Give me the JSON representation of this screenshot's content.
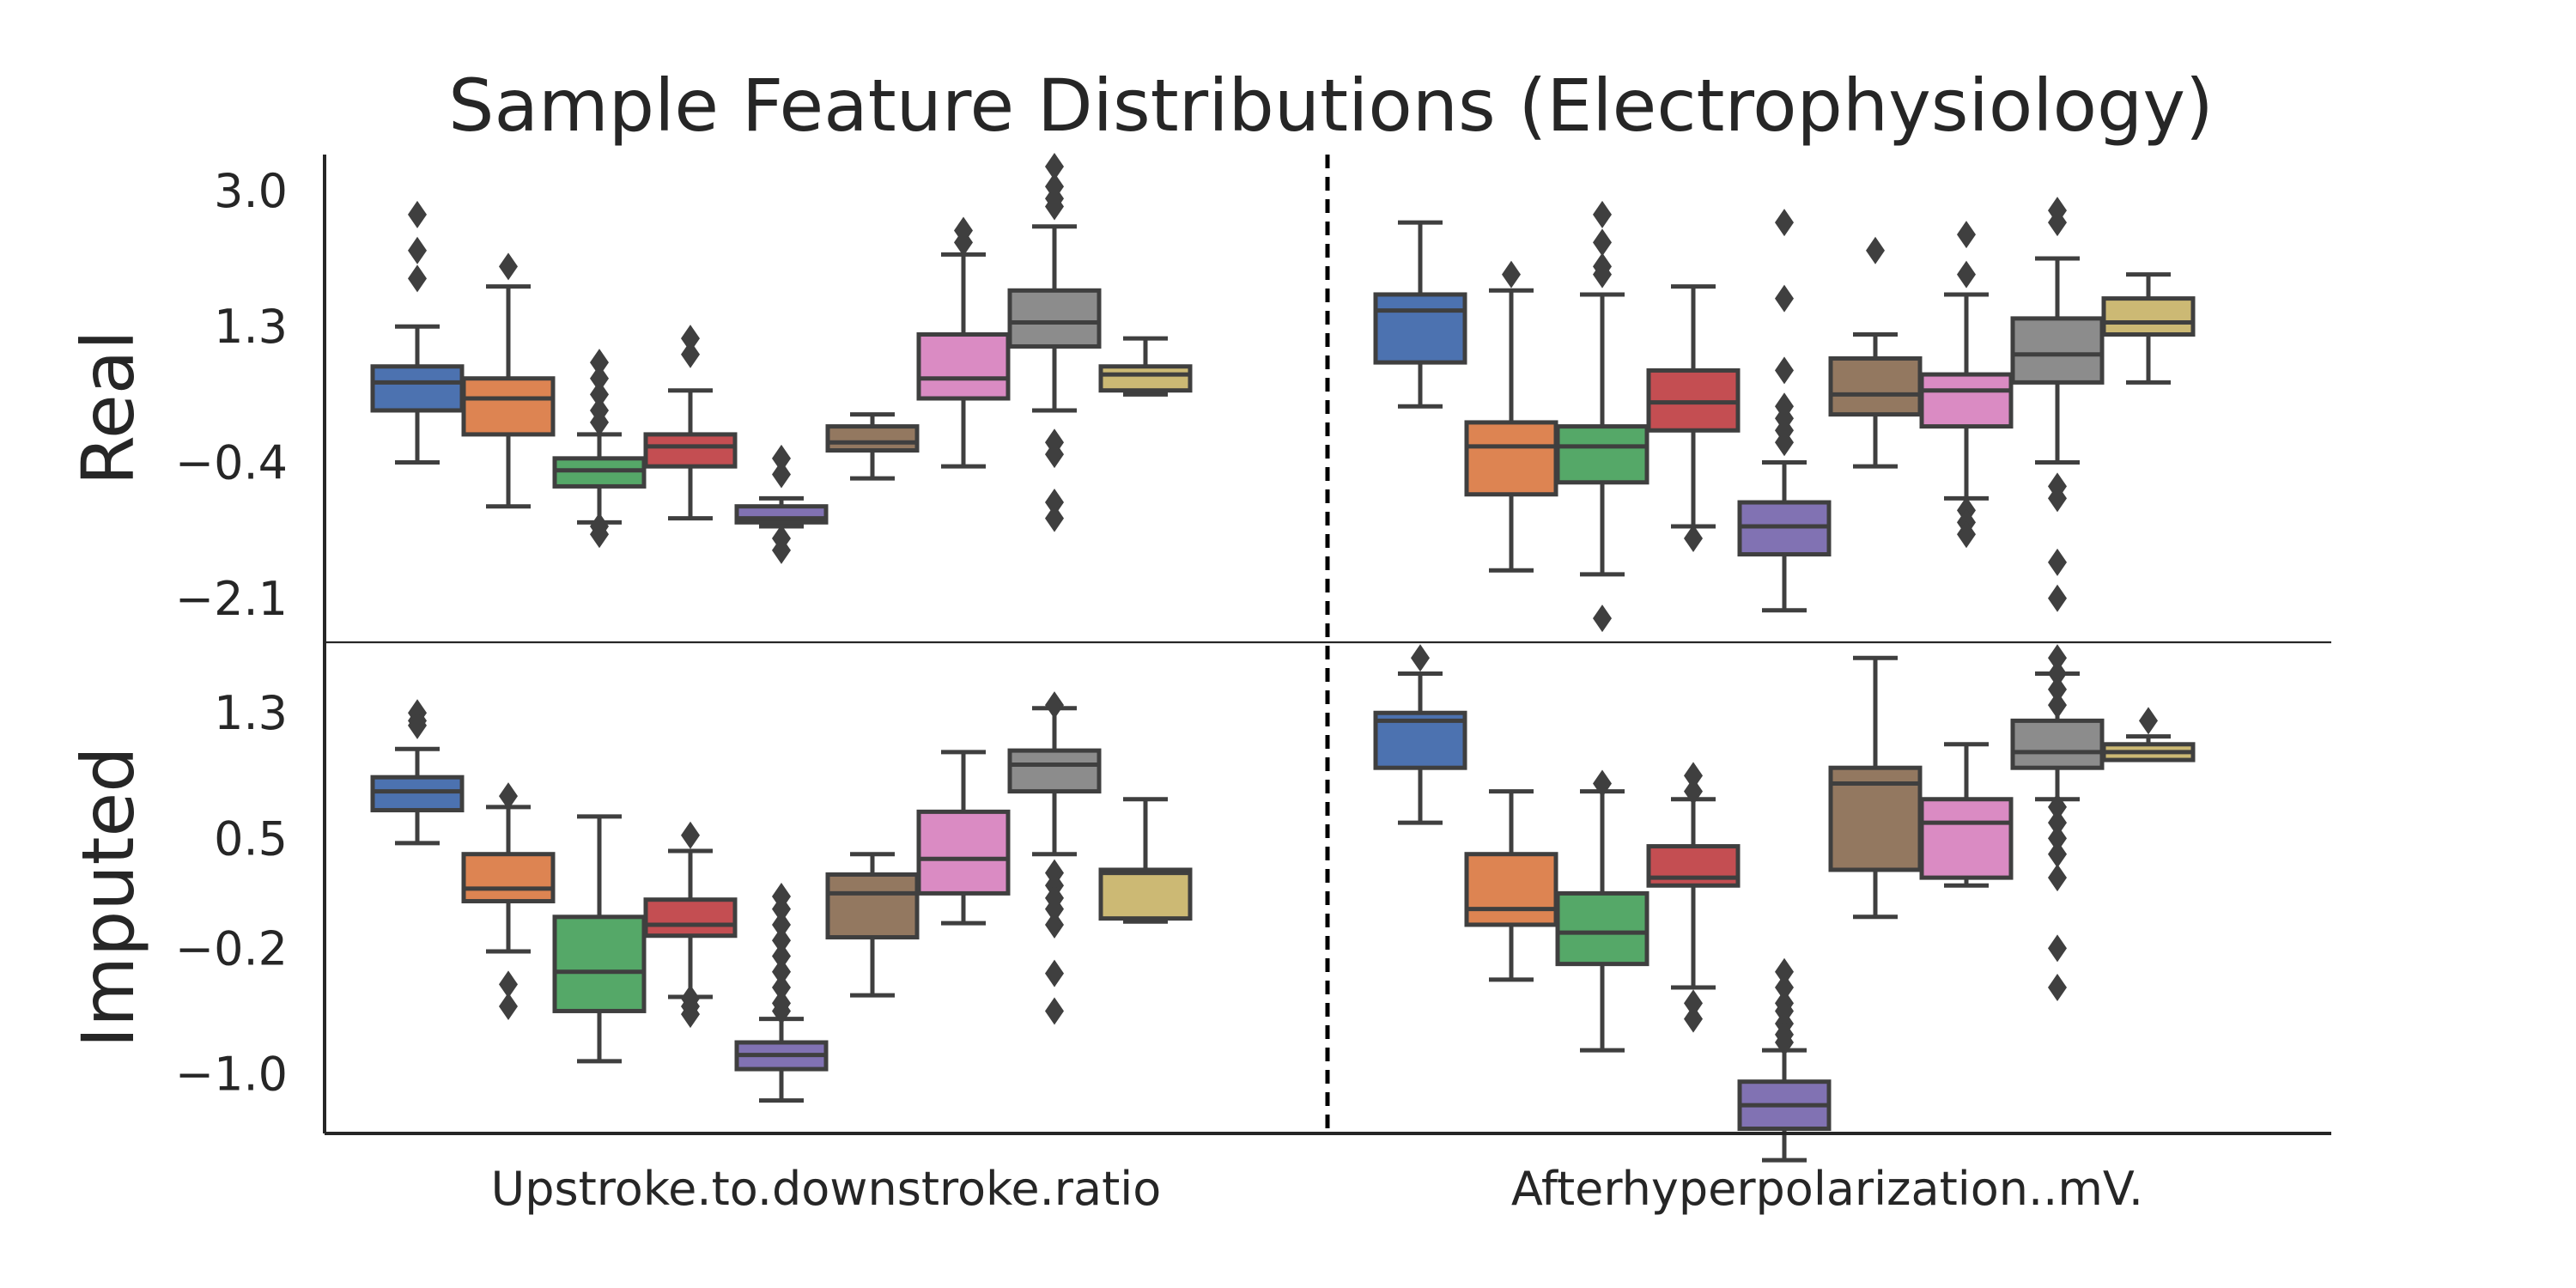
{
  "chart_data": {
    "type": "box",
    "title": "Sample Feature Distributions (Electrophysiology)",
    "row_labels": [
      "Real",
      "Imputed"
    ],
    "x_groups": [
      "Upstroke.to.downstroke.ratio",
      "Afterhyperpolarization..mV."
    ],
    "colors": [
      "#4c72b0",
      "#dd8452",
      "#55a868",
      "#c44e52",
      "#8172b3",
      "#937860",
      "#da8bc3",
      "#8c8c8c",
      "#ccb974"
    ],
    "rows": [
      {
        "name": "Real",
        "ylim": [
          -2.65,
          3.45
        ],
        "yticks": [
          3.0,
          1.3,
          -0.4,
          -2.1
        ],
        "ytick_labels": [
          "3.0",
          "1.3",
          "−0.4",
          "−2.1"
        ],
        "groups": [
          {
            "name": "Upstroke.to.downstroke.ratio",
            "boxes": [
              {
                "whislo": -0.4,
                "q1": 0.25,
                "med": 0.6,
                "q3": 0.8,
                "whishi": 1.3,
                "fliers": [
                  2.7,
                  2.25,
                  1.9
                ]
              },
              {
                "whislo": -0.95,
                "q1": -0.05,
                "med": 0.4,
                "q3": 0.65,
                "whishi": 1.8,
                "fliers": [
                  2.05
                ]
              },
              {
                "whislo": -1.15,
                "q1": -0.7,
                "med": -0.5,
                "q3": -0.35,
                "whishi": -0.05,
                "fliers": [
                  0.85,
                  0.65,
                  0.45,
                  0.25,
                  0.1,
                  -1.2,
                  -1.3
                ]
              },
              {
                "whislo": -1.1,
                "q1": -0.45,
                "med": -0.2,
                "q3": -0.05,
                "whishi": 0.5,
                "fliers": [
                  1.15,
                  0.95
                ]
              },
              {
                "whislo": -1.2,
                "q1": -1.15,
                "med": -1.1,
                "q3": -0.95,
                "whishi": -0.85,
                "fliers": [
                  -0.35,
                  -0.55,
                  -1.35,
                  -1.5
                ]
              },
              {
                "whislo": -0.6,
                "q1": -0.25,
                "med": -0.15,
                "q3": 0.05,
                "whishi": 0.2,
                "fliers": []
              },
              {
                "whislo": -0.45,
                "q1": 0.4,
                "med": 0.65,
                "q3": 1.2,
                "whishi": 2.2,
                "fliers": [
                  2.5,
                  2.35
                ]
              },
              {
                "whislo": 0.25,
                "q1": 1.05,
                "med": 1.35,
                "q3": 1.75,
                "whishi": 2.55,
                "fliers": [
                  3.3,
                  3.05,
                  2.9,
                  2.8,
                  -0.15,
                  -0.3,
                  -0.9,
                  -1.1
                ]
              },
              {
                "whislo": 0.45,
                "q1": 0.5,
                "med": 0.7,
                "q3": 0.8,
                "whishi": 1.15,
                "fliers": []
              }
            ]
          },
          {
            "name": "Afterhyperpolarization..mV.",
            "boxes": [
              {
                "whislo": 0.3,
                "q1": 0.85,
                "med": 1.5,
                "q3": 1.7,
                "whishi": 2.6,
                "fliers": []
              },
              {
                "whislo": -1.75,
                "q1": -0.8,
                "med": -0.2,
                "q3": 0.1,
                "whishi": 1.75,
                "fliers": [
                  1.95
                ]
              },
              {
                "whislo": -1.8,
                "q1": -0.65,
                "med": -0.2,
                "q3": 0.05,
                "whishi": 1.7,
                "fliers": [
                  2.7,
                  2.35,
                  2.05,
                  1.95,
                  -2.35
                ]
              },
              {
                "whislo": -1.2,
                "q1": 0.0,
                "med": 0.35,
                "q3": 0.75,
                "whishi": 1.8,
                "fliers": [
                  -1.35
                ]
              },
              {
                "whislo": -2.25,
                "q1": -1.55,
                "med": -1.2,
                "q3": -0.9,
                "whishi": -0.4,
                "fliers": [
                  2.6,
                  1.65,
                  0.75,
                  0.3,
                  0.15,
                  0.0,
                  -0.15
                ]
              },
              {
                "whislo": -0.45,
                "q1": 0.2,
                "med": 0.45,
                "q3": 0.9,
                "whishi": 1.2,
                "fliers": [
                  2.25
                ]
              },
              {
                "whislo": -0.85,
                "q1": 0.05,
                "med": 0.5,
                "q3": 0.7,
                "whishi": 1.7,
                "fliers": [
                  2.45,
                  1.95,
                  -1.0,
                  -1.15,
                  -1.3
                ]
              },
              {
                "whislo": -0.4,
                "q1": 0.6,
                "med": 0.95,
                "q3": 1.4,
                "whishi": 2.15,
                "fliers": [
                  2.75,
                  2.6,
                  -0.7,
                  -0.85,
                  -1.65,
                  -2.1
                ]
              },
              {
                "whislo": 0.6,
                "q1": 1.2,
                "med": 1.35,
                "q3": 1.65,
                "whishi": 1.95,
                "fliers": []
              }
            ]
          }
        ]
      },
      {
        "name": "Imputed",
        "ylim": [
          -1.38,
          1.75
        ],
        "yticks": [
          1.3,
          0.5,
          -0.2,
          -1.0
        ],
        "ytick_labels": [
          "1.3",
          "0.5",
          "−0.2",
          "−1.0"
        ],
        "groups": [
          {
            "name": "Upstroke.to.downstroke.ratio",
            "boxes": [
              {
                "whislo": 0.47,
                "q1": 0.68,
                "med": 0.8,
                "q3": 0.89,
                "whishi": 1.07,
                "fliers": [
                  1.3,
                  1.25,
                  1.22
                ]
              },
              {
                "whislo": -0.22,
                "q1": 0.1,
                "med": 0.18,
                "q3": 0.4,
                "whishi": 0.7,
                "fliers": [
                  0.77,
                  -0.43,
                  -0.57
                ]
              },
              {
                "whislo": -0.92,
                "q1": -0.6,
                "med": -0.35,
                "q3": 0.0,
                "whishi": 0.64,
                "fliers": []
              },
              {
                "whislo": -0.51,
                "q1": -0.12,
                "med": -0.05,
                "q3": 0.11,
                "whishi": 0.42,
                "fliers": [
                  0.52,
                  -0.52,
                  -0.57,
                  -0.62
                ]
              },
              {
                "whislo": -1.17,
                "q1": -0.97,
                "med": -0.88,
                "q3": -0.8,
                "whishi": -0.65,
                "fliers": [
                  0.13,
                  0.05,
                  -0.05,
                  -0.15,
                  -0.25,
                  -0.35,
                  -0.45,
                  -0.55,
                  -0.6
                ]
              },
              {
                "whislo": -0.5,
                "q1": -0.13,
                "med": 0.15,
                "q3": 0.27,
                "whishi": 0.4,
                "fliers": []
              },
              {
                "whislo": -0.04,
                "q1": 0.15,
                "med": 0.37,
                "q3": 0.67,
                "whishi": 1.05,
                "fliers": []
              },
              {
                "whislo": 0.4,
                "q1": 0.8,
                "med": 0.97,
                "q3": 1.06,
                "whishi": 1.33,
                "fliers": [
                  1.35,
                  0.28,
                  0.2,
                  0.12,
                  0.05,
                  -0.05,
                  -0.36,
                  -0.6
                ]
              },
              {
                "whislo": -0.03,
                "q1": -0.01,
                "med": 0.28,
                "q3": 0.3,
                "whishi": 0.75,
                "fliers": []
              }
            ]
          },
          {
            "name": "Afterhyperpolarization..mV.",
            "boxes": [
              {
                "whislo": 0.6,
                "q1": 0.95,
                "med": 1.25,
                "q3": 1.3,
                "whishi": 1.55,
                "fliers": [
                  1.65
                ]
              },
              {
                "whislo": -0.4,
                "q1": -0.05,
                "med": 0.05,
                "q3": 0.4,
                "whishi": 0.8,
                "fliers": []
              },
              {
                "whislo": -0.85,
                "q1": -0.3,
                "med": -0.1,
                "q3": 0.15,
                "whishi": 0.8,
                "fliers": [
                  0.85
                ]
              },
              {
                "whislo": -0.45,
                "q1": 0.2,
                "med": 0.25,
                "q3": 0.45,
                "whishi": 0.75,
                "fliers": [
                  0.9,
                  0.8,
                  -0.55,
                  -0.65
                ]
              },
              {
                "whislo": -1.55,
                "q1": -1.35,
                "med": -1.2,
                "q3": -1.05,
                "whishi": -0.85,
                "fliers": [
                  -0.35,
                  -0.45,
                  -0.55,
                  -0.6,
                  -0.68,
                  -0.75,
                  -0.8
                ]
              },
              {
                "whislo": 0.0,
                "q1": 0.3,
                "med": 0.85,
                "q3": 0.95,
                "whishi": 1.65,
                "fliers": []
              },
              {
                "whislo": 0.2,
                "q1": 0.25,
                "med": 0.6,
                "q3": 0.75,
                "whishi": 1.1,
                "fliers": []
              },
              {
                "whislo": 0.75,
                "q1": 0.95,
                "med": 1.05,
                "q3": 1.25,
                "whishi": 1.55,
                "fliers": [
                  1.65,
                  1.55,
                  1.45,
                  1.35,
                  0.7,
                  0.6,
                  0.5,
                  0.4,
                  0.25,
                  -0.2,
                  -0.45
                ]
              },
              {
                "whislo": 1.0,
                "q1": 1.0,
                "med": 1.05,
                "q3": 1.1,
                "whishi": 1.15,
                "fliers": [
                  1.25
                ]
              }
            ]
          }
        ]
      }
    ]
  }
}
